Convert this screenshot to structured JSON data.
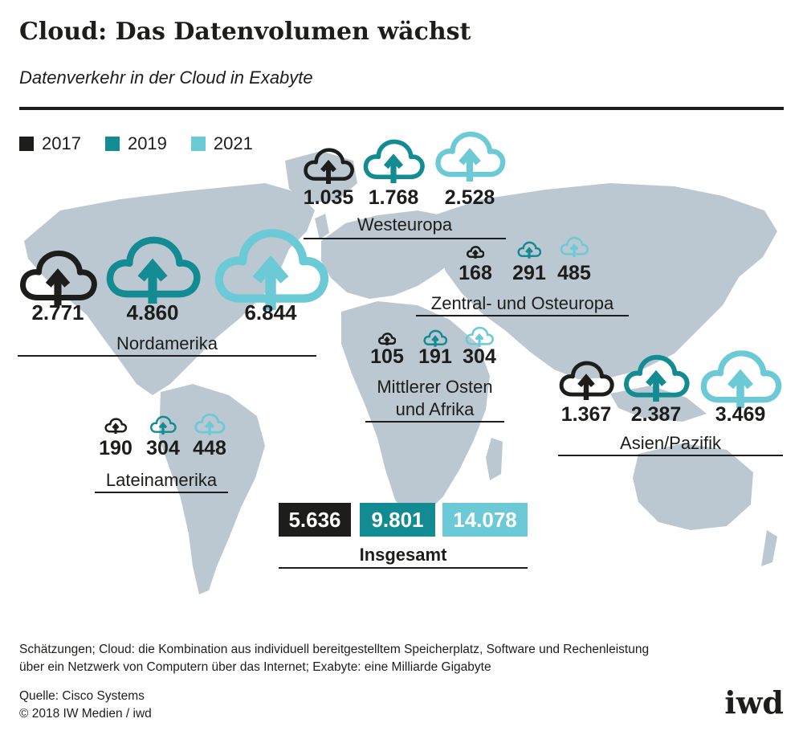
{
  "header": {
    "title": "Cloud: Das Datenvolumen wächst",
    "subtitle": "Datenverkehr in der Cloud in Exabyte"
  },
  "legend": [
    {
      "label": "2017",
      "color": "#1d1d1b"
    },
    {
      "label": "2019",
      "color": "#138b93"
    },
    {
      "label": "2021",
      "color": "#6ccad6"
    }
  ],
  "chart_data": {
    "type": "bar",
    "categories": [
      "Westeuropa",
      "Zentral- und Osteuropa",
      "Nordamerika",
      "Mittlerer Osten und Afrika",
      "Lateinamerika",
      "Asien/Pazifik"
    ],
    "series": [
      {
        "name": "2017",
        "values": [
          "1.035",
          "168",
          "2.771",
          "105",
          "190",
          "1.367"
        ]
      },
      {
        "name": "2019",
        "values": [
          "1.768",
          "291",
          "4.860",
          "191",
          "304",
          "2.387"
        ]
      },
      {
        "name": "2021",
        "values": [
          "2.528",
          "485",
          "6.844",
          "304",
          "448",
          "3.469"
        ]
      }
    ],
    "title": "Cloud: Das Datenvolumen wächst",
    "subtitle": "Datenverkehr in der Cloud in Exabyte",
    "total": {
      "label": "Insgesamt",
      "values": [
        "5.636",
        "9.801",
        "14.078"
      ]
    }
  },
  "regions": [
    {
      "id": "westeuropa",
      "label": "Westeuropa",
      "values": [
        "1.035",
        "1.768",
        "2.528"
      ]
    },
    {
      "id": "osteuropa",
      "label": "Zentral- und Osteuropa",
      "values": [
        "168",
        "291",
        "485"
      ]
    },
    {
      "id": "nordamerika",
      "label": "Nordamerika",
      "values": [
        "2.771",
        "4.860",
        "6.844"
      ]
    },
    {
      "id": "mittlerer-osten",
      "label_line1": "Mittlerer Osten",
      "label_line2": "und Afrika",
      "values": [
        "105",
        "191",
        "304"
      ]
    },
    {
      "id": "lateinamerika",
      "label": "Lateinamerika",
      "values": [
        "190",
        "304",
        "448"
      ]
    },
    {
      "id": "asien",
      "label": "Asien/Pazifik",
      "values": [
        "1.367",
        "2.387",
        "3.469"
      ]
    }
  ],
  "total": {
    "label": "Insgesamt",
    "values": [
      "5.636",
      "9.801",
      "14.078"
    ]
  },
  "footnote": {
    "line1": "Schätzungen; Cloud: die Kombination aus individuell bereitgestelltem Speicherplatz, Software und Rechenleistung",
    "line2": "über ein Netzwerk von Computern über das Internet; Exabyte: eine Milliarde Gigabyte"
  },
  "source": {
    "line1": "Quelle: Cisco Systems",
    "line2": "© 2018 IW Medien / iwd"
  },
  "logo": "iwd",
  "colors": {
    "c2017": "#1d1d1b",
    "c2019": "#138b93",
    "c2021": "#6ccad6",
    "map": "#bcc8d1"
  },
  "icon": "cloud-upload-icon"
}
